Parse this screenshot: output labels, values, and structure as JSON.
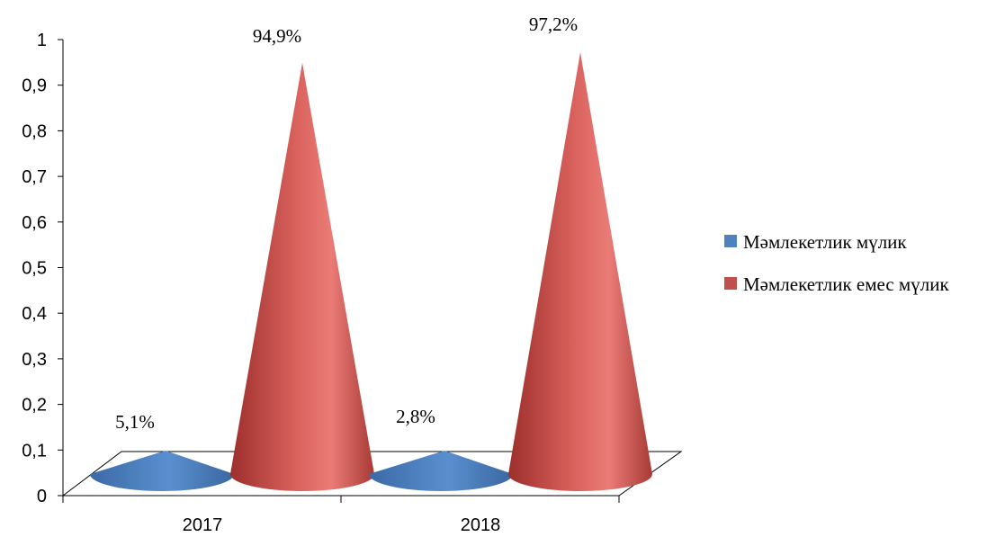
{
  "chart_data": {
    "type": "bar",
    "style": "3d-cone",
    "categories": [
      "2017",
      "2018"
    ],
    "series": [
      {
        "name": "Мәмлекетлик мүлик",
        "values": [
          0.051,
          0.028
        ],
        "labels": [
          "5,1%",
          "2,8%"
        ],
        "color": "#4F81BD"
      },
      {
        "name": "Мәмлекетлик емес мүлик",
        "values": [
          0.949,
          0.972
        ],
        "labels": [
          "94,9%",
          "97,2%"
        ],
        "color": "#C0504D"
      }
    ],
    "ylim": [
      0,
      1
    ],
    "yticks": [
      "0",
      "0,1",
      "0,2",
      "0,3",
      "0,4",
      "0,5",
      "0,6",
      "0,7",
      "0,8",
      "0,9",
      "1"
    ],
    "title": "",
    "xlabel": "",
    "ylabel": "",
    "legend_position": "right",
    "grid": false
  }
}
